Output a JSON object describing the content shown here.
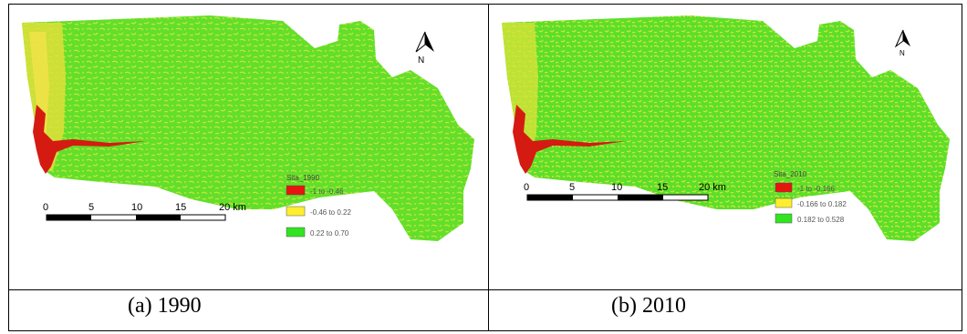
{
  "panels": [
    {
      "legend_title": "Sita_1990",
      "legend_items": [
        {
          "label": "-1 to -0.46",
          "color": "#e8140e"
        },
        {
          "label": "-0.46 to 0.22",
          "color": "#ffee2e"
        },
        {
          "label": "0.22 to 0.70",
          "color": "#31e321"
        }
      ],
      "scale_labels": [
        "0",
        "5",
        "10",
        "15",
        "20 km"
      ],
      "north_label": "N",
      "caption": "(a)  1990"
    },
    {
      "legend_title": "Sita_2010",
      "legend_items": [
        {
          "label": "-1 to -0.166",
          "color": "#e8140e"
        },
        {
          "label": "-0.166 to 0.182",
          "color": "#ffee2e"
        },
        {
          "label": "0.182 to 0.528",
          "color": "#31e321"
        }
      ],
      "scale_labels": [
        "0",
        "5",
        "10",
        "15",
        "20 km"
      ],
      "north_label": "N",
      "caption": "(b)  2010"
    }
  ],
  "colors": {
    "vegetation": "#5fe02a",
    "moderate": "#b8e838",
    "low": "#e8d83a",
    "water": "#d01a12"
  }
}
